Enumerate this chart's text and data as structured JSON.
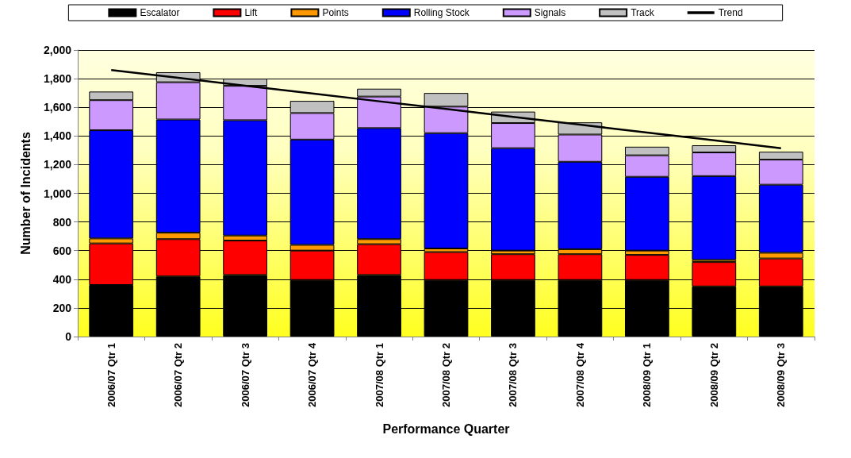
{
  "chart_data": {
    "type": "bar",
    "stacked": true,
    "xlabel": "Performance Quarter",
    "ylabel": "Number of Incidents",
    "categories": [
      "2006/07 Qtr 1",
      "2006/07 Qtr 2",
      "2006/07 Qtr 3",
      "2006/07 Qtr 4",
      "2007/08 Qtr 1",
      "2007/08 Qtr 2",
      "2007/08 Qtr 3",
      "2007/08 Qtr 4",
      "2008/09 Qtr 1",
      "2008/09 Qtr 2",
      "2008/09 Qtr 3"
    ],
    "series": [
      {
        "name": "Escalator",
        "color": "#000000",
        "values": [
          360,
          420,
          430,
          395,
          430,
          395,
          395,
          395,
          395,
          350,
          350
        ]
      },
      {
        "name": "Lift",
        "color": "#ff0000",
        "values": [
          290,
          260,
          240,
          205,
          215,
          195,
          180,
          180,
          175,
          170,
          195
        ]
      },
      {
        "name": "Points",
        "color": "#ff9900",
        "values": [
          35,
          45,
          35,
          40,
          35,
          25,
          25,
          35,
          30,
          15,
          40
        ]
      },
      {
        "name": "Rolling Stock",
        "color": "#0000ff",
        "values": [
          755,
          790,
          805,
          735,
          775,
          805,
          715,
          610,
          515,
          585,
          475
        ]
      },
      {
        "name": "Signals",
        "color": "#cc99ff",
        "values": [
          210,
          260,
          240,
          185,
          220,
          185,
          175,
          190,
          150,
          165,
          175
        ]
      },
      {
        "name": "Track",
        "color": "#c0c0c0",
        "values": [
          60,
          70,
          50,
          85,
          55,
          95,
          80,
          85,
          60,
          50,
          55
        ]
      },
      {
        "name": "Trend",
        "type": "line",
        "color": "#000000",
        "values": [
          1860,
          1806,
          1751,
          1697,
          1642,
          1588,
          1533,
          1479,
          1424,
          1370,
          1315
        ]
      }
    ],
    "ylim": [
      0,
      2000
    ],
    "yticks": [
      {
        "value": 0,
        "label": "0"
      },
      {
        "value": 200,
        "label": "200"
      },
      {
        "value": 400,
        "label": "400"
      },
      {
        "value": 600,
        "label": "600"
      },
      {
        "value": 800,
        "label": "800"
      },
      {
        "value": 1000,
        "label": "1,000"
      },
      {
        "value": 1200,
        "label": "1,200"
      },
      {
        "value": 1400,
        "label": "1,400"
      },
      {
        "value": 1600,
        "label": "1,600"
      },
      {
        "value": 1800,
        "label": "1,800"
      },
      {
        "value": 2000,
        "label": "2,000"
      }
    ],
    "grid": "y",
    "legend": "top",
    "marker": "none"
  }
}
